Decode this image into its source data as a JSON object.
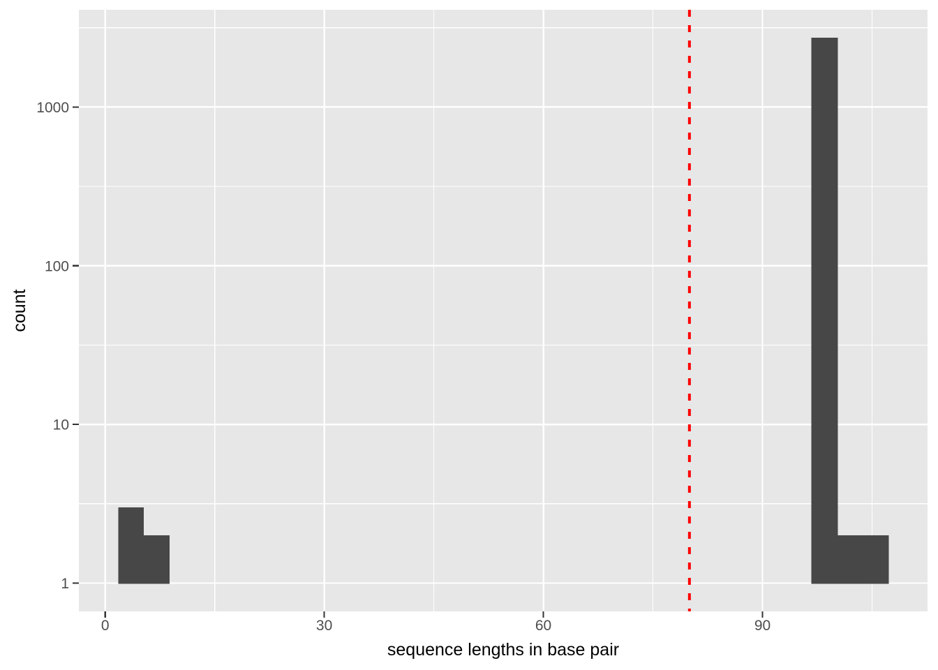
{
  "chart_data": {
    "type": "bar",
    "subtype": "histogram",
    "title": "",
    "xlabel": "sequence lengths in base pair",
    "ylabel": "count",
    "y_scale": "log10",
    "grid": true,
    "legend": false,
    "xlim": [
      -3.6,
      112.6
    ],
    "ylim_log10": [
      -0.178,
      3.613
    ],
    "x_ticks": [
      0,
      30,
      60,
      90
    ],
    "x_minor_ticks": [
      15,
      45,
      75,
      105
    ],
    "y_ticks": [
      1,
      10,
      100,
      1000
    ],
    "y_minor_ticks": [
      3.162,
      31.62,
      316.2,
      3162
    ],
    "bins": [
      {
        "x0": 1.8,
        "x1": 5.3,
        "count": 3
      },
      {
        "x0": 5.3,
        "x1": 8.8,
        "count": 2
      },
      {
        "x0": 96.7,
        "x1": 100.3,
        "count": 2730
      },
      {
        "x0": 100.3,
        "x1": 103.8,
        "count": 2
      },
      {
        "x0": 103.8,
        "x1": 107.3,
        "count": 2
      }
    ],
    "vline": {
      "x": 80,
      "style": "dashed",
      "color": "#FF0000"
    }
  },
  "style": {
    "background": "#FFFFFF",
    "panel_bg": "#E7E7E7",
    "grid_color": "#FFFFFF",
    "bar_color": "#474747",
    "vline_color": "#FF0000",
    "tick_mark_color": "#333333",
    "tick_label_color": "#4D4D4D",
    "axis_title_color": "#000000"
  }
}
